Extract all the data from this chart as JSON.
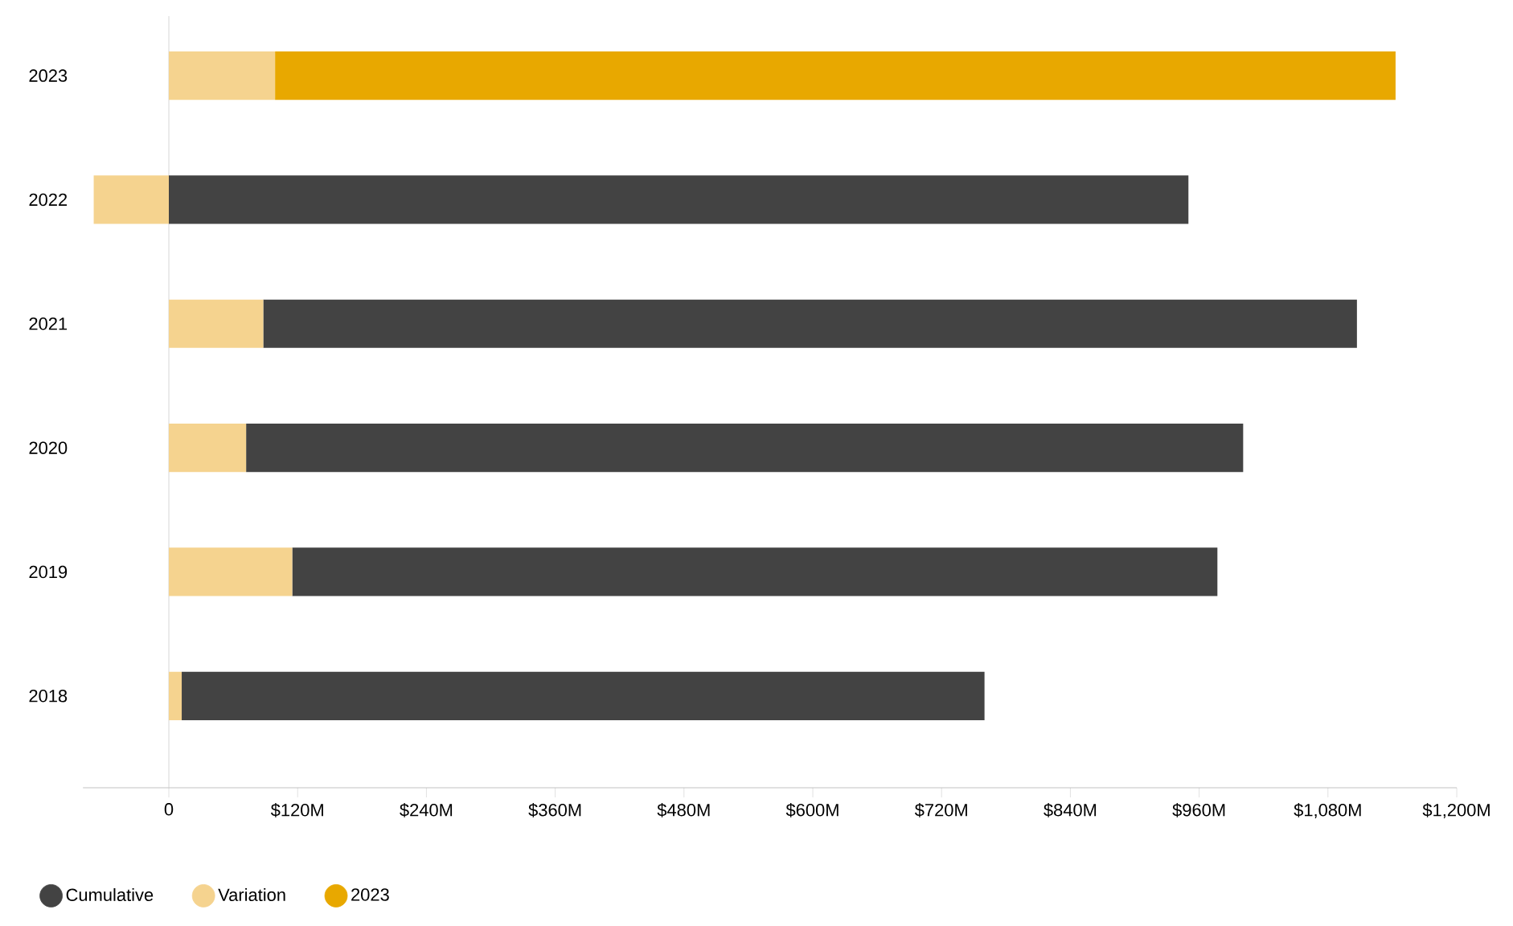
{
  "chart_data": {
    "type": "bar",
    "orientation": "horizontal",
    "categories": [
      "2023",
      "2022",
      "2021",
      "2020",
      "2019",
      "2018"
    ],
    "series": [
      {
        "name": "Cumulative",
        "color": "#434343",
        "values": [
          null,
          950,
          1019,
          929,
          862,
          748
        ],
        "base": [
          null,
          0,
          88,
          72,
          115,
          12
        ]
      },
      {
        "name": "Variation",
        "color": "#f5d38f",
        "values": [
          99,
          -70,
          88,
          72,
          115,
          12
        ]
      },
      {
        "name": "2023",
        "color": "#e8a800",
        "values": [
          1044,
          null,
          null,
          null,
          null,
          null
        ],
        "base": [
          99,
          null,
          null,
          null,
          null,
          null
        ]
      }
    ],
    "xlim": [
      -80,
      1200
    ],
    "xticks": [
      0,
      {
        "value": 120,
        "label": "$120M"
      },
      {
        "value": 240,
        "label": "$240M"
      },
      {
        "value": 360,
        "label": "$360M"
      },
      {
        "value": 480,
        "label": "$480M"
      },
      {
        "value": 600,
        "label": "$600M"
      },
      {
        "value": 720,
        "label": "$720M"
      },
      {
        "value": 840,
        "label": "$840M"
      },
      {
        "value": 960,
        "label": "$960M"
      },
      {
        "value": 1080,
        "label": "$1,080M"
      },
      {
        "value": 1200,
        "label": "$1,200M"
      }
    ],
    "ref_lines": [
      {
        "axis": "x",
        "value": 0,
        "color": "#cccccc"
      }
    ],
    "grid": false,
    "legend": "bottom"
  }
}
